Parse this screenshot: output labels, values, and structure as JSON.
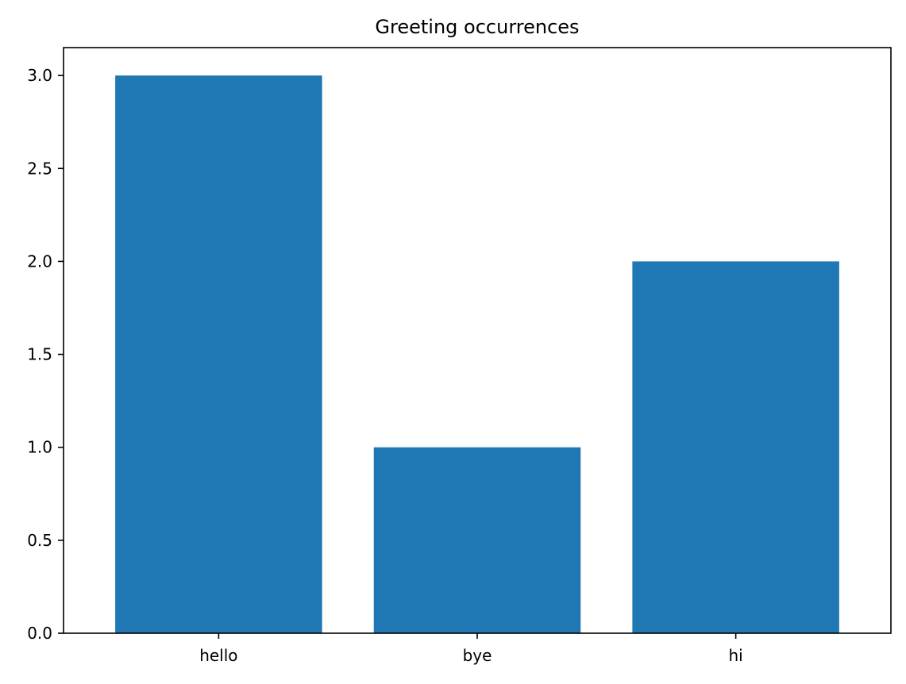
{
  "chart_data": {
    "type": "bar",
    "title": "Greeting occurrences",
    "xlabel": "",
    "ylabel": "",
    "categories": [
      "hello",
      "bye",
      "hi"
    ],
    "values": [
      3,
      1,
      2
    ],
    "ylim": [
      0,
      3.15
    ],
    "yticks": [
      0.0,
      0.5,
      1.0,
      1.5,
      2.0,
      2.5,
      3.0
    ],
    "ytick_labels": [
      "0.0",
      "0.5",
      "1.0",
      "1.5",
      "2.0",
      "2.5",
      "3.0"
    ],
    "grid": false,
    "legend": "none",
    "bar_color": "#1f77b4"
  }
}
